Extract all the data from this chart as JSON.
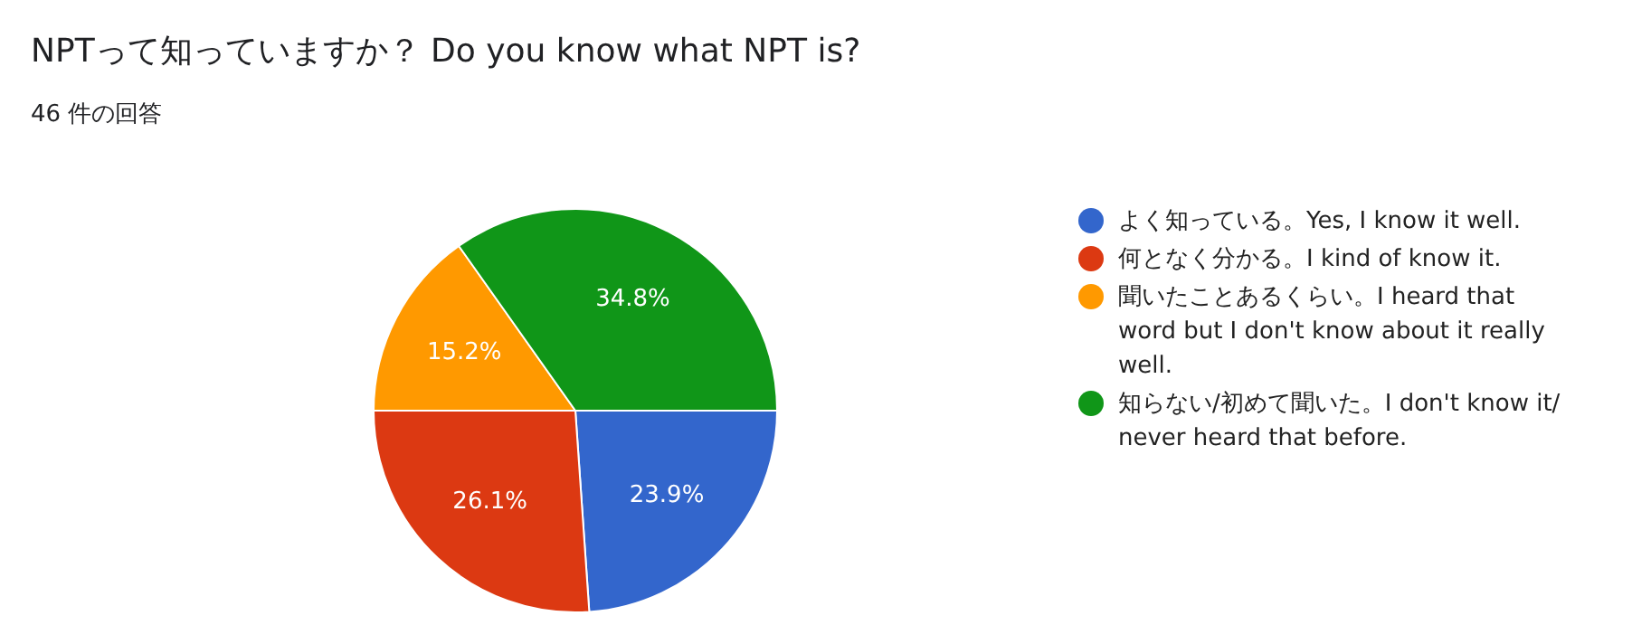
{
  "chart_data": {
    "type": "pie",
    "title": "NPTって知っていますか？ Do you know what NPT is?",
    "subtitle": "46 件の回答",
    "categories": [
      "よく知っている。Yes, I know it well.",
      "何となく分かる。I kind of know it.",
      "聞いたことあるくらい。I heard that word but I don't know about it really well.",
      "知らない/初めて聞いた。I don't know it/ never heard that before."
    ],
    "values": [
      23.9,
      26.1,
      15.2,
      34.8
    ],
    "colors": [
      "#3366cc",
      "#dc3912",
      "#ff9900",
      "#109618"
    ],
    "value_labels": [
      "23.9%",
      "26.1%",
      "15.2%",
      "34.8%"
    ],
    "legend": "right"
  }
}
